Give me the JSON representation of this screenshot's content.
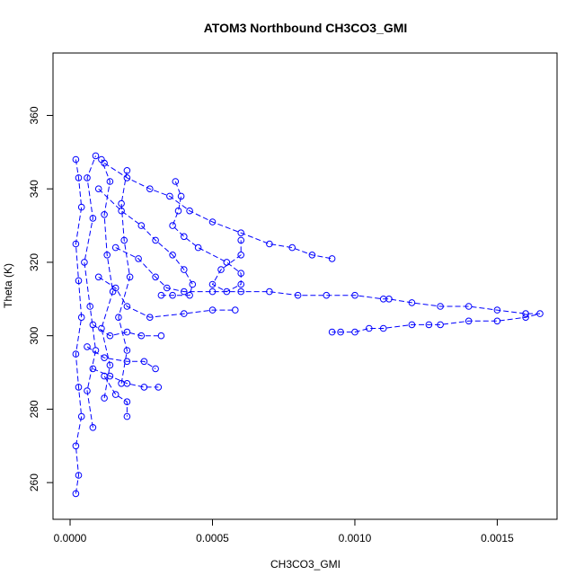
{
  "chart_data": {
    "type": "scatter",
    "title": "ATOM3 Northbound CH3CO3_GMI",
    "xlabel": "CH3CO3_GMI",
    "ylabel": "Theta (K)",
    "xlim": [
      -6e-05,
      0.00171
    ],
    "ylim": [
      250,
      377
    ],
    "x_ticks": [
      {
        "value": 0.0,
        "label": "0.0000"
      },
      {
        "value": 0.0005,
        "label": "0.0005"
      },
      {
        "value": 0.001,
        "label": "0.0010"
      },
      {
        "value": 0.0015,
        "label": "0.0015"
      }
    ],
    "y_ticks": [
      {
        "value": 260,
        "label": "260"
      },
      {
        "value": 280,
        "label": "280"
      },
      {
        "value": 300,
        "label": "300"
      },
      {
        "value": 320,
        "label": "320"
      },
      {
        "value": 340,
        "label": "340"
      },
      {
        "value": 360,
        "label": "360"
      }
    ],
    "grid": false,
    "marker": "open-circle",
    "connected_dashed": true,
    "color": "#0000ff",
    "series": [
      {
        "points": [
          [
            2e-05,
            257
          ],
          [
            3e-05,
            262
          ],
          [
            2e-05,
            270
          ],
          [
            4e-05,
            278
          ],
          [
            3e-05,
            286
          ],
          [
            2e-05,
            295
          ],
          [
            4e-05,
            305
          ],
          [
            3e-05,
            315
          ],
          [
            2e-05,
            325
          ],
          [
            4e-05,
            335
          ],
          [
            3e-05,
            343
          ],
          [
            2e-05,
            348
          ]
        ]
      },
      {
        "points": [
          [
            8e-05,
            275
          ],
          [
            6e-05,
            285
          ],
          [
            9e-05,
            296
          ],
          [
            7e-05,
            308
          ],
          [
            5e-05,
            320
          ],
          [
            8e-05,
            332
          ],
          [
            6e-05,
            343
          ],
          [
            9e-05,
            349
          ]
        ]
      },
      {
        "points": [
          [
            0.00012,
            283
          ],
          [
            0.00014,
            292
          ],
          [
            0.00011,
            302
          ],
          [
            0.00015,
            312
          ],
          [
            0.00013,
            322
          ],
          [
            0.00012,
            333
          ],
          [
            0.00014,
            342
          ],
          [
            0.00011,
            348
          ]
        ]
      },
      {
        "points": [
          [
            0.00018,
            287
          ],
          [
            0.0002,
            296
          ],
          [
            0.00017,
            305
          ],
          [
            0.00021,
            316
          ],
          [
            0.00019,
            326
          ],
          [
            0.00018,
            336
          ],
          [
            0.0002,
            345
          ]
        ]
      },
      {
        "points": [
          [
            0.00012,
            347
          ],
          [
            0.0002,
            343
          ],
          [
            0.00028,
            340
          ],
          [
            0.00035,
            338
          ],
          [
            0.00042,
            334
          ],
          [
            0.0005,
            331
          ],
          [
            0.0006,
            328
          ],
          [
            0.0007,
            325
          ],
          [
            0.00078,
            324
          ],
          [
            0.00085,
            322
          ],
          [
            0.00092,
            321
          ]
        ]
      },
      {
        "points": [
          [
            0.0001,
            340
          ],
          [
            0.00018,
            334
          ],
          [
            0.00025,
            330
          ],
          [
            0.0003,
            326
          ],
          [
            0.00036,
            322
          ],
          [
            0.0004,
            318
          ],
          [
            0.00043,
            314
          ],
          [
            0.00042,
            311
          ],
          [
            0.00036,
            311
          ],
          [
            0.00032,
            311
          ]
        ]
      },
      {
        "points": [
          [
            0.00037,
            342
          ],
          [
            0.00039,
            338
          ],
          [
            0.00038,
            334
          ],
          [
            0.00036,
            330
          ],
          [
            0.0004,
            327
          ],
          [
            0.00045,
            324
          ],
          [
            0.00055,
            320
          ],
          [
            0.0006,
            317
          ],
          [
            0.0006,
            314
          ],
          [
            0.00055,
            312
          ],
          [
            0.0005,
            314
          ],
          [
            0.00053,
            318
          ],
          [
            0.0006,
            322
          ],
          [
            0.0006,
            326
          ]
        ]
      },
      {
        "points": [
          [
            0.0001,
            316
          ],
          [
            0.00016,
            313
          ],
          [
            0.0002,
            308
          ],
          [
            0.00028,
            305
          ],
          [
            0.0004,
            306
          ],
          [
            0.0005,
            307
          ],
          [
            0.00058,
            307
          ]
        ]
      },
      {
        "points": [
          [
            0.00016,
            324
          ],
          [
            0.00024,
            321
          ],
          [
            0.0003,
            316
          ],
          [
            0.00034,
            313
          ],
          [
            0.0004,
            312
          ],
          [
            0.0005,
            312
          ],
          [
            0.0006,
            312
          ],
          [
            0.0007,
            312
          ],
          [
            0.0008,
            311
          ],
          [
            0.0009,
            311
          ],
          [
            0.001,
            311
          ],
          [
            0.0011,
            310
          ],
          [
            0.00112,
            310
          ],
          [
            0.0012,
            309
          ],
          [
            0.0013,
            308
          ],
          [
            0.0014,
            308
          ],
          [
            0.0015,
            307
          ],
          [
            0.0016,
            306
          ],
          [
            0.00165,
            306
          ],
          [
            0.0016,
            305
          ],
          [
            0.0015,
            304
          ],
          [
            0.0014,
            304
          ],
          [
            0.0013,
            303
          ],
          [
            0.00126,
            303
          ],
          [
            0.0012,
            303
          ],
          [
            0.0011,
            302
          ],
          [
            0.00105,
            302
          ],
          [
            0.001,
            301
          ],
          [
            0.00095,
            301
          ],
          [
            0.00092,
            301
          ]
        ]
      },
      {
        "points": [
          [
            8e-05,
            303
          ],
          [
            0.00014,
            300
          ],
          [
            0.0002,
            301
          ],
          [
            0.00025,
            300
          ],
          [
            0.00032,
            300
          ]
        ]
      },
      {
        "points": [
          [
            6e-05,
            297
          ],
          [
            0.00012,
            294
          ],
          [
            0.0002,
            293
          ],
          [
            0.00026,
            293
          ],
          [
            0.0003,
            291
          ]
        ]
      },
      {
        "points": [
          [
            8e-05,
            291
          ],
          [
            0.00014,
            289
          ],
          [
            0.0002,
            287
          ],
          [
            0.00026,
            286
          ],
          [
            0.00031,
            286
          ]
        ]
      },
      {
        "points": [
          [
            0.00012,
            289
          ],
          [
            0.00016,
            284
          ],
          [
            0.0002,
            282
          ],
          [
            0.0002,
            278
          ]
        ]
      }
    ]
  }
}
